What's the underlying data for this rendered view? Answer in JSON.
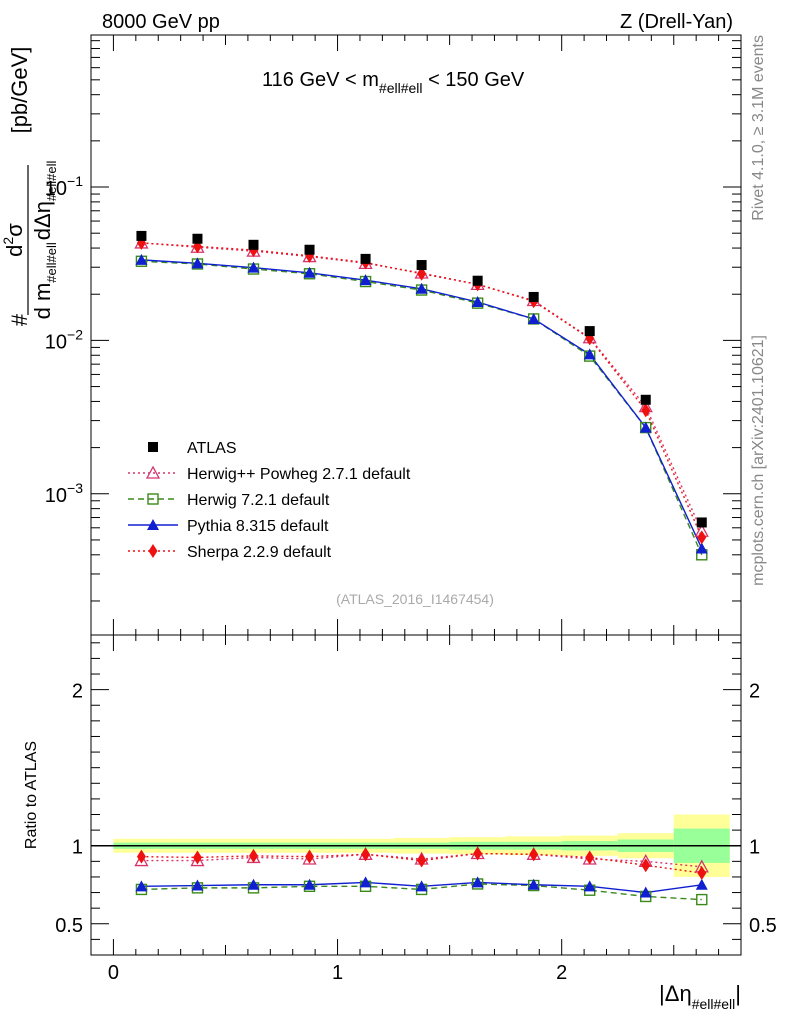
{
  "header": {
    "left": "8000 GeV pp",
    "right": "Z (Drell-Yan)"
  },
  "side_labels": {
    "rivet": "Rivet 4.1.0, ≥ 3.1M events",
    "mcplots": "mcplots.cern.ch [arXiv:2401.10621]"
  },
  "chart_data": {
    "type": "scatter",
    "title": "116 GeV < m_{#ell#ell} < 150 GeV",
    "title_main_left": "116 GeV < m",
    "title_sub": "#ell#ell",
    "title_main_right": " < 150 GeV",
    "watermark": "(ATLAS_2016_I1467454)",
    "ylabel": {
      "num_hash": "#",
      "num_d": "d",
      "num_sup": "2",
      "num_sigma": "σ",
      "den_d1": "d m",
      "den_sub1": "#ell#ell",
      "den_d2": "dΔη",
      "den_sub2": "#ell#ell",
      "units": "[pb/GeV]"
    },
    "xlabel": {
      "main": "|Δη",
      "sub": "#ell#ell",
      "close": "|"
    },
    "ratio_ylabel": "Ratio to ATLAS",
    "xlim": [
      -0.1,
      2.8
    ],
    "ylim_main_log": [
      0.00012,
      0.98
    ],
    "ylim_ratio": [
      0.3,
      2.35
    ],
    "x_ticks": [
      "0",
      "1",
      "2"
    ],
    "x_tick_values": [
      0,
      1,
      2
    ],
    "y_ticks_main": [
      {
        "value": 0.1,
        "base": "10",
        "exp": "−1"
      },
      {
        "value": 0.01,
        "base": "10",
        "exp": "−2"
      },
      {
        "value": 0.001,
        "base": "10",
        "exp": "−3"
      }
    ],
    "y_ticks_ratio": [
      {
        "value": 0.5,
        "label": "0.5"
      },
      {
        "value": 1,
        "label": "1"
      },
      {
        "value": 2,
        "label": "2"
      }
    ],
    "x": [
      0.125,
      0.375,
      0.625,
      0.875,
      1.125,
      1.375,
      1.625,
      1.875,
      2.125,
      2.375,
      2.625
    ],
    "bin_edges": [
      0.0,
      0.25,
      0.5,
      0.75,
      1.0,
      1.25,
      1.5,
      1.75,
      2.0,
      2.25,
      2.5,
      2.75
    ],
    "data_band_inner": [
      0.02,
      0.02,
      0.02,
      0.02,
      0.02,
      0.02,
      0.025,
      0.025,
      0.03,
      0.04,
      0.11
    ],
    "data_band_outer": [
      0.045,
      0.045,
      0.045,
      0.045,
      0.045,
      0.05,
      0.055,
      0.06,
      0.065,
      0.08,
      0.2
    ],
    "data": {
      "name": "ATLAS",
      "color": "#000000",
      "values": [
        0.048,
        0.046,
        0.042,
        0.039,
        0.034,
        0.031,
        0.0245,
        0.0192,
        0.0115,
        0.0041,
        0.00065
      ]
    },
    "series": [
      {
        "name": "Herwig++ Powheg 2.7.1 default",
        "color": "#d6336c",
        "style": "dotted",
        "marker": "triangle-open",
        "values": [
          0.0432,
          0.0405,
          0.0382,
          0.0352,
          0.0318,
          0.0275,
          0.0232,
          0.0182,
          0.0104,
          0.0037,
          0.00057
        ],
        "ratio": [
          0.905,
          0.905,
          0.925,
          0.915,
          0.945,
          0.915,
          0.95,
          0.945,
          0.915,
          0.9,
          0.865
        ]
      },
      {
        "name": "Herwig 7.2.1 default",
        "color": "#3a8a1a",
        "style": "dashed",
        "marker": "square-open",
        "values": [
          0.0328,
          0.0315,
          0.0292,
          0.0272,
          0.0242,
          0.0213,
          0.0175,
          0.0138,
          0.0079,
          0.0027,
          0.0004
        ],
        "ratio": [
          0.72,
          0.73,
          0.73,
          0.74,
          0.74,
          0.72,
          0.755,
          0.745,
          0.715,
          0.675,
          0.655
        ]
      },
      {
        "name": "Pythia 8.315 default",
        "color": "#1020d0",
        "style": "solid",
        "marker": "triangle-filled",
        "values": [
          0.0335,
          0.0318,
          0.0298,
          0.0276,
          0.0247,
          0.0217,
          0.0178,
          0.0138,
          0.0081,
          0.0027,
          0.00044
        ],
        "ratio": [
          0.74,
          0.745,
          0.75,
          0.75,
          0.765,
          0.74,
          0.765,
          0.75,
          0.74,
          0.7,
          0.75
        ]
      },
      {
        "name": "Sherpa 2.2.9 default",
        "color": "#ee1111",
        "style": "dotted",
        "marker": "diamond-filled",
        "values": [
          0.0432,
          0.041,
          0.0388,
          0.0356,
          0.0322,
          0.0272,
          0.0232,
          0.018,
          0.0103,
          0.0035,
          0.00052
        ],
        "ratio": [
          0.93,
          0.925,
          0.935,
          0.93,
          0.945,
          0.905,
          0.95,
          0.945,
          0.925,
          0.875,
          0.825
        ]
      }
    ]
  }
}
